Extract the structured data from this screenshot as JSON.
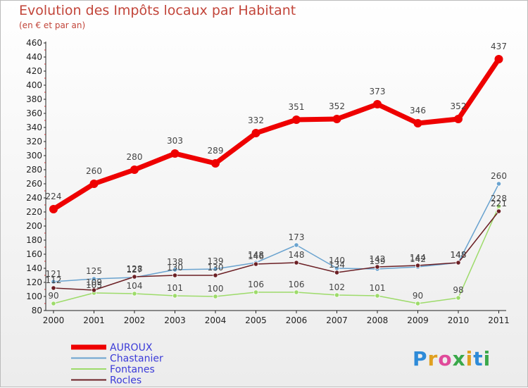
{
  "title": "Evolution des Impôts locaux par Habitant",
  "subtitle": "(en € et par an)",
  "logo_text": "Proxiti",
  "colors": {
    "title": "#c2453a",
    "legend_text": "#3a3ad8",
    "AUROUX": "#ee0000",
    "Chastanier": "#6aa3cf",
    "Fontanes": "#9ddb6a",
    "Rocles": "#6b1f24"
  },
  "chart_data": {
    "type": "line",
    "title": "Evolution des Impôts locaux par Habitant",
    "subtitle": "(en € et par an)",
    "x": [
      "2000",
      "2001",
      "2002",
      "2003",
      "2004",
      "2005",
      "2006",
      "2007",
      "2008",
      "2009",
      "2010",
      "2011"
    ],
    "ylim": [
      80,
      460
    ],
    "yticks": [
      80,
      100,
      120,
      140,
      160,
      180,
      200,
      220,
      240,
      260,
      280,
      300,
      320,
      340,
      360,
      380,
      400,
      420,
      440,
      460
    ],
    "grid": false,
    "legend_position": "bottom-left",
    "series": [
      {
        "name": "AUROUX",
        "values": [
          224,
          260,
          280,
          303,
          289,
          332,
          351,
          352,
          373,
          346,
          352,
          437
        ]
      },
      {
        "name": "Chastanier",
        "values": [
          121,
          125,
          127,
          138,
          139,
          148,
          173,
          140,
          139,
          142,
          148,
          260
        ]
      },
      {
        "name": "Fontanes",
        "values": [
          90,
          105,
          104,
          101,
          100,
          106,
          106,
          102,
          101,
          90,
          98,
          228
        ]
      },
      {
        "name": "Rocles",
        "values": [
          112,
          109,
          128,
          130,
          130,
          146,
          148,
          134,
          142,
          144,
          148,
          221
        ]
      }
    ]
  }
}
